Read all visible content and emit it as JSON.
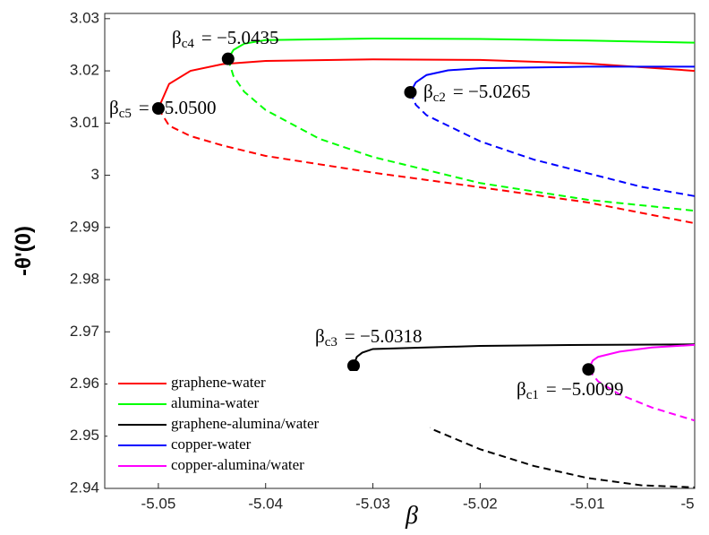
{
  "chart_data": {
    "type": "line",
    "xlabel": "β",
    "ylabel": "-θ'(0)",
    "xlim": [
      -5.055,
      -5.0
    ],
    "ylim": [
      2.94,
      3.031
    ],
    "xticks": [
      -5.05,
      -5.04,
      -5.03,
      -5.02,
      -5.01,
      -5
    ],
    "yticks": [
      2.94,
      2.95,
      2.96,
      2.97,
      2.98,
      2.99,
      3,
      3.01,
      3.02,
      3.03
    ],
    "legend": "lower left",
    "series": [
      {
        "name": "graphene-water",
        "color": "#ff0000",
        "x_upper": [
          -5.05,
          -5.049,
          -5.047,
          -5.044,
          -5.04,
          -5.03,
          -5.02,
          -5.01,
          -5.0
        ],
        "upper": [
          3.0128,
          3.0175,
          3.02,
          3.0213,
          3.0219,
          3.0222,
          3.0221,
          3.0214,
          3.02
        ],
        "x_lower": [
          -5.05,
          -5.049,
          -5.047,
          -5.044,
          -5.04,
          -5.03,
          -5.02,
          -5.01,
          -5.0
        ],
        "lower": [
          3.0128,
          3.0095,
          3.0075,
          3.0057,
          3.0037,
          3.0005,
          2.9977,
          2.9948,
          2.9908
        ],
        "critical": {
          "x": -5.05,
          "y": 3.0128,
          "symbol": "β",
          "subscript": "c5",
          "text": "= −5.0500"
        }
      },
      {
        "name": "alumina-water",
        "color": "#00ff00",
        "x_upper": [
          -5.0435,
          -5.043,
          -5.042,
          -5.04,
          -5.03,
          -5.02,
          -5.01,
          -5.0
        ],
        "upper": [
          3.0223,
          3.024,
          3.0252,
          3.0259,
          3.0262,
          3.0261,
          3.0258,
          3.0254
        ],
        "x_lower": [
          -5.0435,
          -5.043,
          -5.042,
          -5.04,
          -5.035,
          -5.03,
          -5.02,
          -5.01,
          -5.0
        ],
        "lower": [
          3.0223,
          3.019,
          3.016,
          3.0125,
          3.007,
          3.0035,
          2.9985,
          2.9953,
          2.9932
        ],
        "critical": {
          "x": -5.0435,
          "y": 3.0223,
          "symbol": "β",
          "subscript": "c4",
          "text": "= −5.0435"
        }
      },
      {
        "name": "graphene-alumina/water",
        "color": "#000000",
        "x_upper": [
          -5.0318,
          -5.0315,
          -5.031,
          -5.03,
          -5.02,
          -5.01,
          -5.0
        ],
        "upper": [
          2.9635,
          2.9652,
          2.966,
          2.9667,
          2.9673,
          2.9675,
          2.9676
        ],
        "x_lower": [
          -5.0318,
          -5.031,
          -5.029,
          -5.025,
          -5.02,
          -5.015,
          -5.01,
          -5.005,
          -5.0
        ],
        "lower": [
          2.9635,
          2.9605,
          2.957,
          2.9518,
          2.9475,
          2.9443,
          2.942,
          2.9406,
          2.9402
        ],
        "critical": {
          "x": -5.0318,
          "y": 2.9635,
          "symbol": "β",
          "subscript": "c3",
          "text": "= −5.0318"
        }
      },
      {
        "name": "copper-water",
        "color": "#0000ff",
        "x_upper": [
          -5.0265,
          -5.026,
          -5.025,
          -5.023,
          -5.02,
          -5.01,
          -5.0
        ],
        "upper": [
          3.0159,
          3.0178,
          3.0192,
          3.0201,
          3.0205,
          3.0208,
          3.0208
        ],
        "x_lower": [
          -5.0265,
          -5.026,
          -5.025,
          -5.022,
          -5.02,
          -5.015,
          -5.01,
          -5.005,
          -5.0
        ],
        "lower": [
          3.0159,
          3.0135,
          3.0115,
          3.0085,
          3.0065,
          3.003,
          3.0004,
          2.9978,
          2.996
        ],
        "critical": {
          "x": -5.0265,
          "y": 3.0159,
          "symbol": "β",
          "subscript": "c2",
          "text": "= −5.0265"
        }
      },
      {
        "name": "copper-alumina/water",
        "color": "#ff00ff",
        "x_upper": [
          -5.0099,
          -5.0095,
          -5.009,
          -5.007,
          -5.004,
          -5.0
        ],
        "upper": [
          2.9628,
          2.9645,
          2.9652,
          2.9662,
          2.967,
          2.9675
        ],
        "x_lower": [
          -5.0099,
          -5.009,
          -5.007,
          -5.004,
          -5.0
        ],
        "lower": [
          2.9628,
          2.9605,
          2.958,
          2.9555,
          2.953
        ],
        "critical": {
          "x": -5.0099,
          "y": 2.9628,
          "symbol": "β",
          "subscript": "c1",
          "text": "= −5.0099"
        }
      }
    ]
  }
}
